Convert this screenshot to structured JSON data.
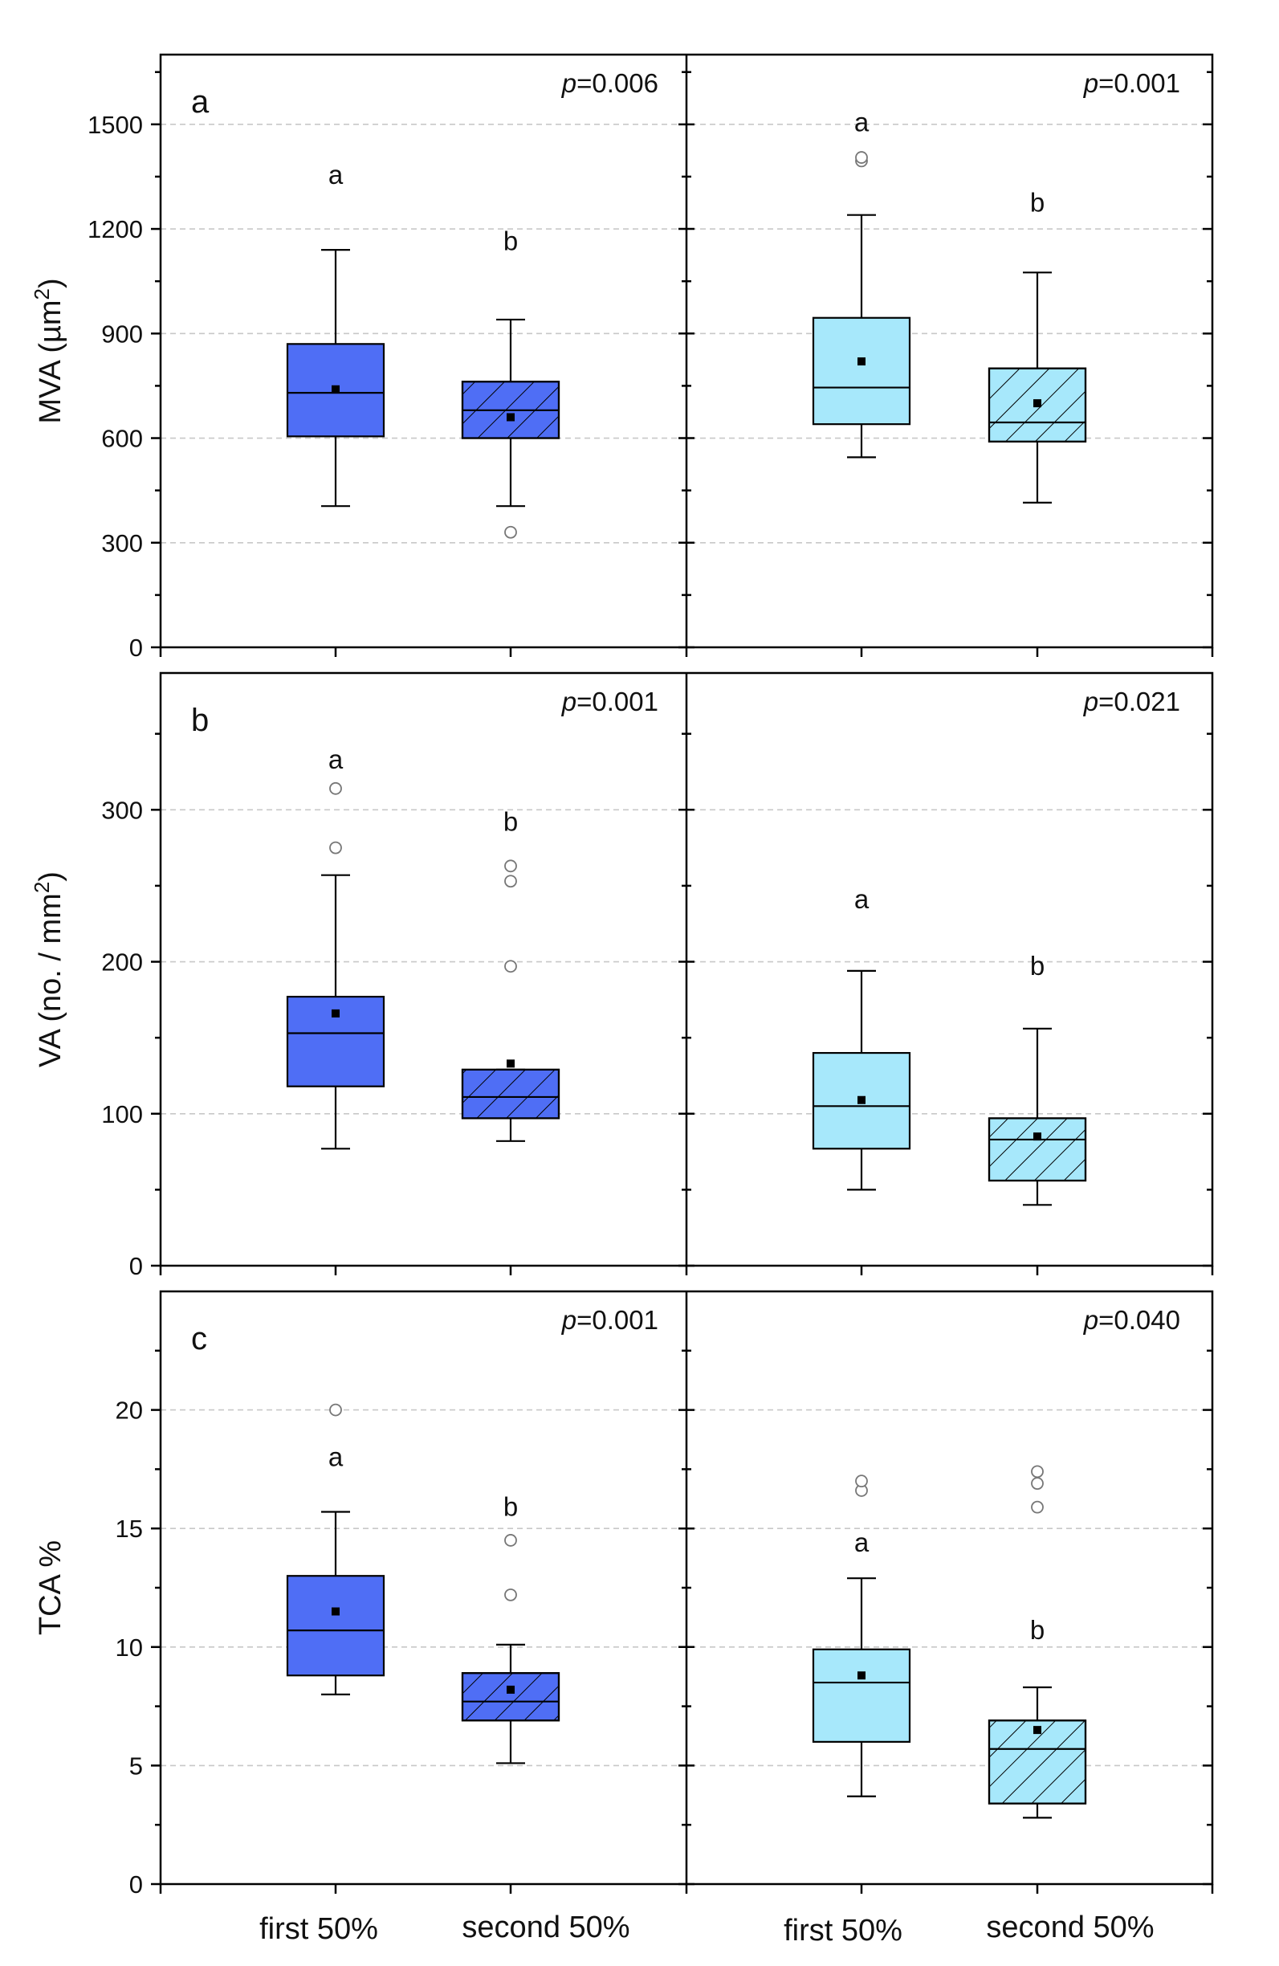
{
  "chart_data": {
    "type": "box",
    "layout": "3 rows x 2 columns",
    "x_categories": [
      "first 50%",
      "second 50%",
      "first 50%",
      "second 50%"
    ],
    "colors": {
      "column1_fill": "#4f6ef5",
      "column2_fill": "#a7e8fb",
      "second_half_hatch": "diagonal"
    },
    "panels": [
      {
        "label": "a",
        "ylabel": "MVA (µm²)",
        "ylabel_main": "MVA (µm",
        "ylabel_sup": "2",
        "ylabel_tail": ")",
        "ylim": [
          0,
          1700
        ],
        "yticks": [
          0,
          300,
          600,
          900,
          1200,
          1500
        ],
        "ytick_labels": [
          "0",
          "300",
          "600",
          "900",
          "1200",
          "1500"
        ],
        "pvalues": [
          {
            "p": "p",
            "value": "=0.006"
          },
          {
            "p": "p",
            "value": "=0.001"
          }
        ],
        "series": [
          {
            "name": "first 50%",
            "column": 1,
            "whisker_low": 405,
            "q1": 605,
            "median": 730,
            "q3": 870,
            "whisker_high": 1140,
            "mean": 740,
            "outliers": [],
            "letter": "a",
            "letter_y": 1355,
            "hatched": false
          },
          {
            "name": "second 50%",
            "column": 1,
            "whisker_low": 405,
            "q1": 600,
            "median": 680,
            "q3": 762,
            "whisker_high": 940,
            "mean": 660,
            "outliers": [
              330
            ],
            "letter": "b",
            "letter_y": 1165,
            "hatched": true
          },
          {
            "name": "first 50%",
            "column": 2,
            "whisker_low": 545,
            "q1": 640,
            "median": 745,
            "q3": 945,
            "whisker_high": 1240,
            "mean": 820,
            "outliers": [
              1395,
              1405
            ],
            "letter": "a",
            "letter_y": 1505,
            "hatched": false
          },
          {
            "name": "second 50%",
            "column": 2,
            "whisker_low": 415,
            "q1": 590,
            "median": 645,
            "q3": 800,
            "whisker_high": 1075,
            "mean": 700,
            "outliers": [],
            "letter": "b",
            "letter_y": 1275,
            "hatched": true
          }
        ]
      },
      {
        "label": "b",
        "ylabel": "VA (no. / mm²)",
        "ylabel_main": "VA (no. / mm",
        "ylabel_sup": "2",
        "ylabel_tail": ")",
        "ylim": [
          0,
          390
        ],
        "yticks": [
          0,
          100,
          200,
          300
        ],
        "ytick_labels": [
          "0",
          "100",
          "200",
          "300"
        ],
        "pvalues": [
          {
            "p": "p",
            "value": "=0.001"
          },
          {
            "p": "p",
            "value": "=0.021"
          }
        ],
        "series": [
          {
            "name": "first 50%",
            "column": 1,
            "whisker_low": 77,
            "q1": 118,
            "median": 153,
            "q3": 177,
            "whisker_high": 257,
            "mean": 166,
            "outliers": [
              275,
              314
            ],
            "letter": "a",
            "letter_y": 333,
            "hatched": false
          },
          {
            "name": "second 50%",
            "column": 1,
            "whisker_low": 82,
            "q1": 97,
            "median": 111,
            "q3": 129,
            "whisker_high": 129,
            "mean": 133,
            "outliers": [
              197,
              253,
              263
            ],
            "letter": "b",
            "letter_y": 292,
            "hatched": true
          },
          {
            "name": "first 50%",
            "column": 2,
            "whisker_low": 50,
            "q1": 77,
            "median": 105,
            "q3": 140,
            "whisker_high": 194,
            "mean": 109,
            "outliers": [],
            "letter": "a",
            "letter_y": 241,
            "hatched": false
          },
          {
            "name": "second 50%",
            "column": 2,
            "whisker_low": 40,
            "q1": 56,
            "median": 83,
            "q3": 97,
            "whisker_high": 156,
            "mean": 85,
            "outliers": [],
            "letter": "b",
            "letter_y": 197,
            "hatched": true
          }
        ]
      },
      {
        "label": "c",
        "ylabel": "TCA %",
        "ylabel_main": "TCA %",
        "ylabel_sup": "",
        "ylabel_tail": "",
        "ylim": [
          0,
          25
        ],
        "yticks": [
          0,
          5,
          10,
          15,
          20
        ],
        "ytick_labels": [
          "0",
          "5",
          "10",
          "15",
          "20"
        ],
        "pvalues": [
          {
            "p": "p",
            "value": "=0.001"
          },
          {
            "p": "p",
            "value": "=0.040"
          }
        ],
        "series": [
          {
            "name": "first 50%",
            "column": 1,
            "whisker_low": 8.0,
            "q1": 8.8,
            "median": 10.7,
            "q3": 13.0,
            "whisker_high": 15.7,
            "mean": 11.5,
            "outliers": [
              20.0
            ],
            "letter": "a",
            "letter_y": 18.0,
            "hatched": false
          },
          {
            "name": "second 50%",
            "column": 1,
            "whisker_low": 5.1,
            "q1": 6.9,
            "median": 7.7,
            "q3": 8.9,
            "whisker_high": 10.1,
            "mean": 8.2,
            "outliers": [
              12.2,
              14.5
            ],
            "letter": "b",
            "letter_y": 15.9,
            "hatched": true
          },
          {
            "name": "first 50%",
            "column": 2,
            "whisker_low": 3.7,
            "q1": 6.0,
            "median": 8.5,
            "q3": 9.9,
            "whisker_high": 12.9,
            "mean": 8.8,
            "outliers": [
              16.6,
              17.0
            ],
            "letter": "a",
            "letter_y": 14.4,
            "hatched": false
          },
          {
            "name": "second 50%",
            "column": 2,
            "whisker_low": 2.8,
            "q1": 3.4,
            "median": 5.7,
            "q3": 6.9,
            "whisker_high": 8.3,
            "mean": 6.5,
            "outliers": [
              15.9,
              16.9,
              17.4
            ],
            "letter": "b",
            "letter_y": 10.7,
            "hatched": true
          }
        ]
      }
    ]
  }
}
